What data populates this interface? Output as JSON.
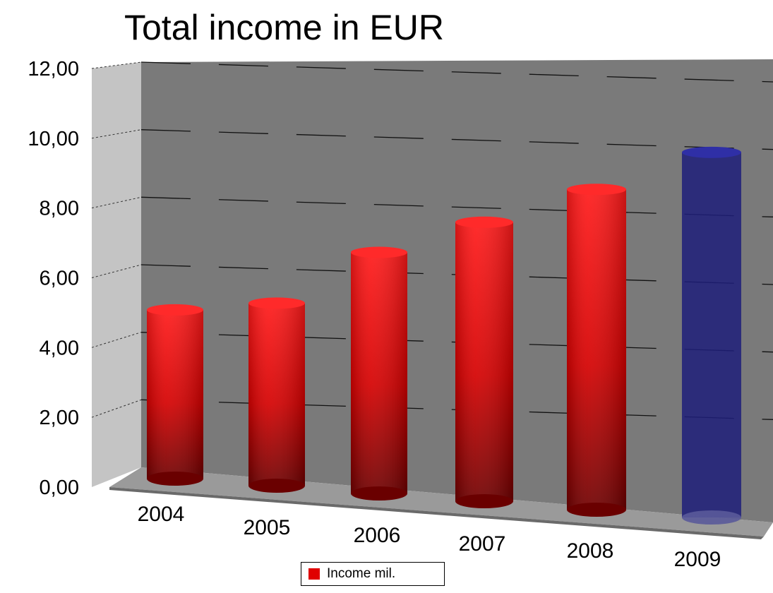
{
  "chart_data": {
    "type": "bar",
    "title": "Total income in EUR",
    "categories": [
      "2004",
      "2005",
      "2006",
      "2007",
      "2008",
      "2009"
    ],
    "series": [
      {
        "name": "Income mil.",
        "values": [
          4.9,
          5.3,
          7.0,
          8.1,
          9.3,
          10.6
        ]
      }
    ],
    "highlight": {
      "category": "2009",
      "color": "#1e1e7a"
    },
    "ylim": [
      0,
      12
    ],
    "yticks": [
      "0,00",
      "2,00",
      "4,00",
      "6,00",
      "8,00",
      "10,00",
      "12,00"
    ],
    "grid": true,
    "legend": "bottom",
    "colors": {
      "bar": "#e00000",
      "highlight": "#1e1e7a",
      "wall": "#7a7a7a",
      "side_wall": "#c4c4c4",
      "floor": "#9a9a9a"
    }
  }
}
